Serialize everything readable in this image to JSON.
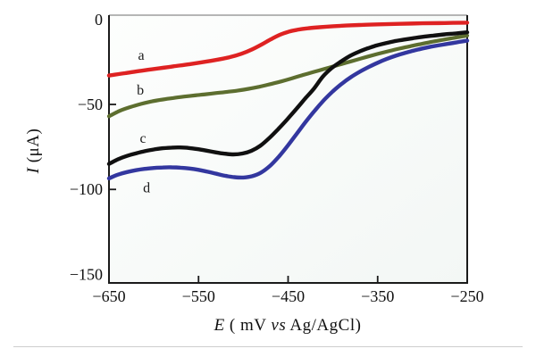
{
  "figure": {
    "background": "#ffffff",
    "bottom_rule_color": "#cdcdcd",
    "frame_color": "#1a1a1a",
    "text_color": "#111111"
  },
  "chart_data": {
    "type": "line",
    "title": "",
    "xlabel": "E ( mV vs Ag/AgCl)",
    "ylabel": "I (μA)",
    "xlabel_parts": {
      "e": "E",
      "mid": " ( mV ",
      "vs": "vs",
      "end": " Ag/AgCl)"
    },
    "ylabel_parts": {
      "i": "I",
      "rest": " (μA)"
    },
    "grid": false,
    "legend": "inline curve letters a, b, c, d",
    "x_axis": {
      "min": -650,
      "max": -250,
      "ticks": [
        -650,
        -550,
        -450,
        -350,
        -250
      ],
      "tick_labels": [
        "−650",
        "−550",
        "−450",
        "−350",
        "−250"
      ]
    },
    "y_axis": {
      "value_at_frame_top": 2.5,
      "value_at_frame_bottom": -155,
      "ticks": [
        0,
        -50,
        -100,
        -150
      ],
      "tick_labels": [
        "0",
        "−50",
        "−100",
        "−150"
      ]
    },
    "series": [
      {
        "name": "a",
        "color": "#de2222",
        "stroke_width": 4.4,
        "label": {
          "text": "a",
          "E": -614,
          "I": -21
        },
        "points": [
          [
            -650,
            -33
          ],
          [
            -632,
            -31.6
          ],
          [
            -614,
            -30.2
          ],
          [
            -596,
            -28.9
          ],
          [
            -578,
            -27.6
          ],
          [
            -560,
            -26.3
          ],
          [
            -545,
            -25.1
          ],
          [
            -530,
            -23.8
          ],
          [
            -515,
            -22.2
          ],
          [
            -502,
            -20.2
          ],
          [
            -490,
            -17.6
          ],
          [
            -479,
            -14.6
          ],
          [
            -469,
            -11.6
          ],
          [
            -459,
            -9
          ],
          [
            -450,
            -7.3
          ],
          [
            -440,
            -6.1
          ],
          [
            -428,
            -5.2
          ],
          [
            -415,
            -4.6
          ],
          [
            -400,
            -4
          ],
          [
            -385,
            -3.6
          ],
          [
            -368,
            -3.2
          ],
          [
            -350,
            -2.9
          ],
          [
            -326,
            -2.6
          ],
          [
            -300,
            -2.3
          ],
          [
            -275,
            -2.1
          ],
          [
            -250,
            -1.9
          ]
        ]
      },
      {
        "name": "b",
        "color": "#5d6e2f",
        "stroke_width": 4.2,
        "label": {
          "text": "b",
          "E": -615,
          "I": -41.5
        },
        "points": [
          [
            -650,
            -57
          ],
          [
            -638,
            -53.8
          ],
          [
            -626,
            -51.5
          ],
          [
            -614,
            -49.7
          ],
          [
            -602,
            -48.2
          ],
          [
            -590,
            -47.1
          ],
          [
            -578,
            -46.2
          ],
          [
            -566,
            -45.4
          ],
          [
            -554,
            -44.7
          ],
          [
            -542,
            -44
          ],
          [
            -530,
            -43.3
          ],
          [
            -518,
            -42.6
          ],
          [
            -506,
            -41.8
          ],
          [
            -494,
            -40.8
          ],
          [
            -482,
            -39.6
          ],
          [
            -470,
            -38.1
          ],
          [
            -458,
            -36.5
          ],
          [
            -446,
            -34.7
          ],
          [
            -434,
            -32.8
          ],
          [
            -422,
            -31
          ],
          [
            -410,
            -29.2
          ],
          [
            -398,
            -27.4
          ],
          [
            -386,
            -25.6
          ],
          [
            -374,
            -23.8
          ],
          [
            -362,
            -22
          ],
          [
            -350,
            -20.3
          ],
          [
            -338,
            -18.7
          ],
          [
            -326,
            -17.2
          ],
          [
            -314,
            -15.8
          ],
          [
            -302,
            -14.5
          ],
          [
            -290,
            -13.2
          ],
          [
            -277,
            -12
          ],
          [
            -263,
            -10.7
          ],
          [
            -250,
            -9.5
          ]
        ]
      },
      {
        "name": "c",
        "color": "#101010",
        "stroke_width": 4.4,
        "label": {
          "text": "c",
          "E": -612,
          "I": -70
        },
        "points": [
          [
            -650,
            -85
          ],
          [
            -640,
            -82.3
          ],
          [
            -630,
            -80.3
          ],
          [
            -620,
            -78.8
          ],
          [
            -610,
            -77.5
          ],
          [
            -600,
            -76.5
          ],
          [
            -590,
            -75.8
          ],
          [
            -580,
            -75.4
          ],
          [
            -571,
            -75.3
          ],
          [
            -561,
            -75.6
          ],
          [
            -551,
            -76.3
          ],
          [
            -541,
            -77.2
          ],
          [
            -531,
            -78.2
          ],
          [
            -521,
            -79
          ],
          [
            -511,
            -79.4
          ],
          [
            -501,
            -78.9
          ],
          [
            -491,
            -77.3
          ],
          [
            -481,
            -74.3
          ],
          [
            -471,
            -69.8
          ],
          [
            -461,
            -64.5
          ],
          [
            -451,
            -58.8
          ],
          [
            -441,
            -52.8
          ],
          [
            -431,
            -46.6
          ],
          [
            -421,
            -40.6
          ],
          [
            -411,
            -33.5
          ],
          [
            -401,
            -28.5
          ],
          [
            -391,
            -24.8
          ],
          [
            -381,
            -21.5
          ],
          [
            -371,
            -19
          ],
          [
            -361,
            -17
          ],
          [
            -351,
            -15.3
          ],
          [
            -341,
            -14
          ],
          [
            -331,
            -12.8
          ],
          [
            -321,
            -11.9
          ],
          [
            -311,
            -11.1
          ],
          [
            -301,
            -10.3
          ],
          [
            -288,
            -9.5
          ],
          [
            -275,
            -8.8
          ],
          [
            -262,
            -8.2
          ],
          [
            -250,
            -7.6
          ]
        ]
      },
      {
        "name": "d",
        "color": "#33379f",
        "stroke_width": 4.4,
        "label": {
          "text": "d",
          "E": -608,
          "I": -99
        },
        "points": [
          [
            -650,
            -93.5
          ],
          [
            -640,
            -91.3
          ],
          [
            -630,
            -89.8
          ],
          [
            -620,
            -88.7
          ],
          [
            -610,
            -87.9
          ],
          [
            -600,
            -87.4
          ],
          [
            -590,
            -87.1
          ],
          [
            -580,
            -87
          ],
          [
            -570,
            -87.2
          ],
          [
            -560,
            -87.7
          ],
          [
            -550,
            -88.5
          ],
          [
            -540,
            -89.6
          ],
          [
            -530,
            -90.8
          ],
          [
            -520,
            -92
          ],
          [
            -510,
            -92.8
          ],
          [
            -500,
            -93
          ],
          [
            -490,
            -92.2
          ],
          [
            -480,
            -90
          ],
          [
            -470,
            -86
          ],
          [
            -460,
            -80.5
          ],
          [
            -450,
            -74
          ],
          [
            -440,
            -67
          ],
          [
            -430,
            -60
          ],
          [
            -420,
            -53.5
          ],
          [
            -410,
            -47.5
          ],
          [
            -400,
            -42.3
          ],
          [
            -390,
            -37.8
          ],
          [
            -380,
            -34
          ],
          [
            -370,
            -30.8
          ],
          [
            -360,
            -28
          ],
          [
            -350,
            -25.5
          ],
          [
            -340,
            -23.3
          ],
          [
            -330,
            -21.4
          ],
          [
            -320,
            -19.8
          ],
          [
            -310,
            -18.4
          ],
          [
            -300,
            -17.1
          ],
          [
            -290,
            -16
          ],
          [
            -277,
            -14.8
          ],
          [
            -263,
            -13.6
          ],
          [
            -250,
            -12.5
          ]
        ]
      }
    ]
  }
}
